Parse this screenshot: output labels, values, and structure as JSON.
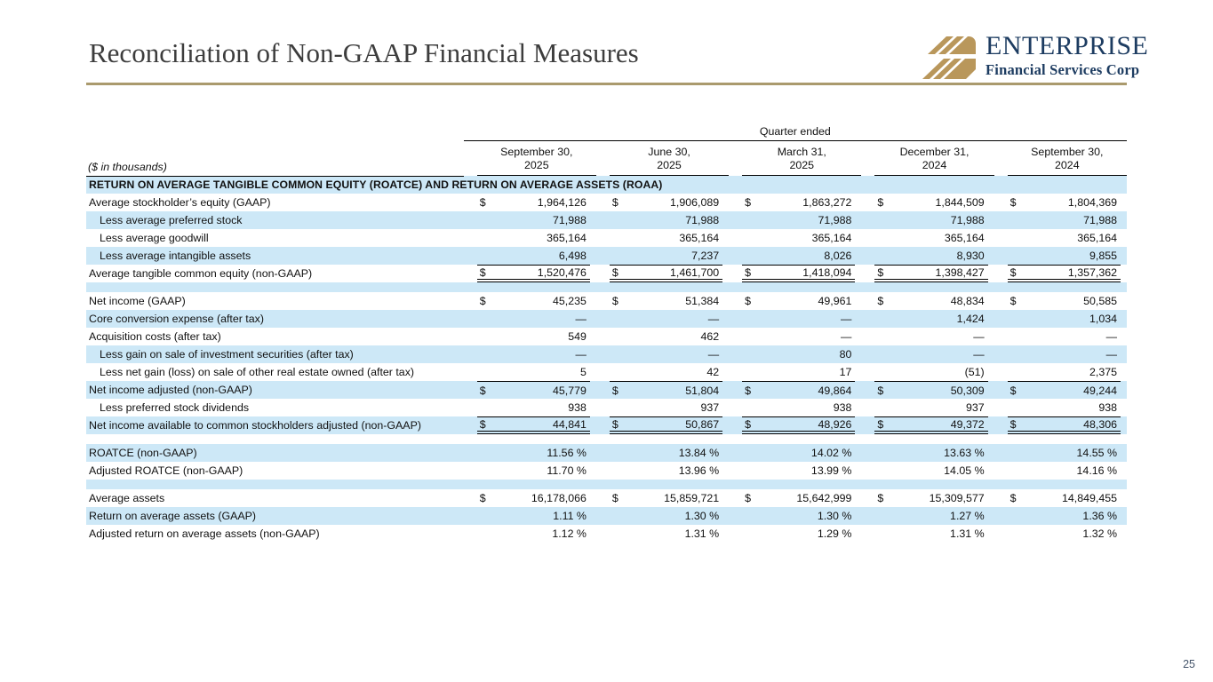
{
  "page": {
    "title": "Reconciliation of Non-GAAP Financial Measures",
    "page_number": "25"
  },
  "logo": {
    "name": "ENTERPRISE",
    "subtitle": "Financial Services Corp"
  },
  "colors": {
    "stripe": "#cde8f7",
    "gold": "#b9975b",
    "gold_rule": "#aa9a6d",
    "navy": "#1d3c61",
    "title_gray": "#3d3d3d",
    "page_number_color": "#44546a"
  },
  "table": {
    "quarter_ended_label": "Quarter ended",
    "units_label": "($ in thousands)",
    "columns": [
      [
        "September 30,",
        "2025"
      ],
      [
        "June 30,",
        "2025"
      ],
      [
        "March 31,",
        "2025"
      ],
      [
        "December 31,",
        "2024"
      ],
      [
        "September 30,",
        "2024"
      ]
    ],
    "rows": [
      {
        "type": "section",
        "label": "RETURN ON AVERAGE TANGIBLE COMMON EQUITY (ROATCE) AND RETURN ON AVERAGE ASSETS (ROAA)"
      },
      {
        "label": "Average stockholder’s equity (GAAP)",
        "dollar": true,
        "values": [
          "1,964,126",
          "1,906,089",
          "1,863,272",
          "1,844,509",
          "1,804,369"
        ]
      },
      {
        "label": "Less average preferred stock",
        "indent": true,
        "values": [
          "71,988",
          "71,988",
          "71,988",
          "71,988",
          "71,988"
        ]
      },
      {
        "label": "Less average goodwill",
        "indent": true,
        "values": [
          "365,164",
          "365,164",
          "365,164",
          "365,164",
          "365,164"
        ]
      },
      {
        "label": "Less average intangible assets",
        "indent": true,
        "values": [
          "6,498",
          "7,237",
          "8,026",
          "8,930",
          "9,855"
        ]
      },
      {
        "label": "Average tangible common equity (non-GAAP)",
        "dollar": true,
        "border_top": true,
        "border_bottom": "double",
        "values": [
          "1,520,476",
          "1,461,700",
          "1,418,094",
          "1,398,427",
          "1,357,362"
        ]
      },
      {
        "type": "spacer"
      },
      {
        "label": "Net income (GAAP)",
        "dollar": true,
        "values": [
          "45,235",
          "51,384",
          "49,961",
          "48,834",
          "50,585"
        ]
      },
      {
        "label": "Core conversion expense (after tax)",
        "values": [
          "—",
          "—",
          "—",
          "1,424",
          "1,034"
        ]
      },
      {
        "label": "Acquisition costs (after tax)",
        "values": [
          "549",
          "462",
          "—",
          "—",
          "—"
        ]
      },
      {
        "label": "Less gain on sale of investment securities (after tax)",
        "indent": true,
        "values": [
          "—",
          "—",
          "80",
          "—",
          "—"
        ]
      },
      {
        "label": "Less net gain (loss) on sale of other real estate owned (after tax)",
        "indent": true,
        "values": [
          "5",
          "42",
          "17",
          "(51)",
          "2,375"
        ]
      },
      {
        "label": "Net income adjusted (non-GAAP)",
        "dollar": true,
        "border_top": true,
        "values": [
          "45,779",
          "51,804",
          "49,864",
          "50,309",
          "49,244"
        ]
      },
      {
        "label": "Less preferred stock dividends",
        "indent": true,
        "values": [
          "938",
          "937",
          "938",
          "937",
          "938"
        ]
      },
      {
        "label": "Net income available to common stockholders adjusted (non-GAAP)",
        "dollar": true,
        "border_top": true,
        "border_bottom": "double",
        "values": [
          "44,841",
          "50,867",
          "48,926",
          "49,372",
          "48,306"
        ]
      },
      {
        "type": "spacer"
      },
      {
        "label": "ROATCE (non-GAAP)",
        "values": [
          "11.56 %",
          "13.84 %",
          "14.02 %",
          "13.63 %",
          "14.55 %"
        ]
      },
      {
        "label": "Adjusted ROATCE (non-GAAP)",
        "values": [
          "11.70 %",
          "13.96 %",
          "13.99 %",
          "14.05 %",
          "14.16 %"
        ]
      },
      {
        "type": "spacer"
      },
      {
        "label": "Average assets",
        "dollar": true,
        "values": [
          "16,178,066",
          "15,859,721",
          "15,642,999",
          "15,309,577",
          "14,849,455"
        ]
      },
      {
        "label": "Return on average assets (GAAP)",
        "values": [
          "1.11 %",
          "1.30 %",
          "1.30 %",
          "1.27 %",
          "1.36 %"
        ]
      },
      {
        "label": "Adjusted return on average assets (non-GAAP)",
        "values": [
          "1.12 %",
          "1.31 %",
          "1.29 %",
          "1.31 %",
          "1.32 %"
        ]
      }
    ]
  }
}
